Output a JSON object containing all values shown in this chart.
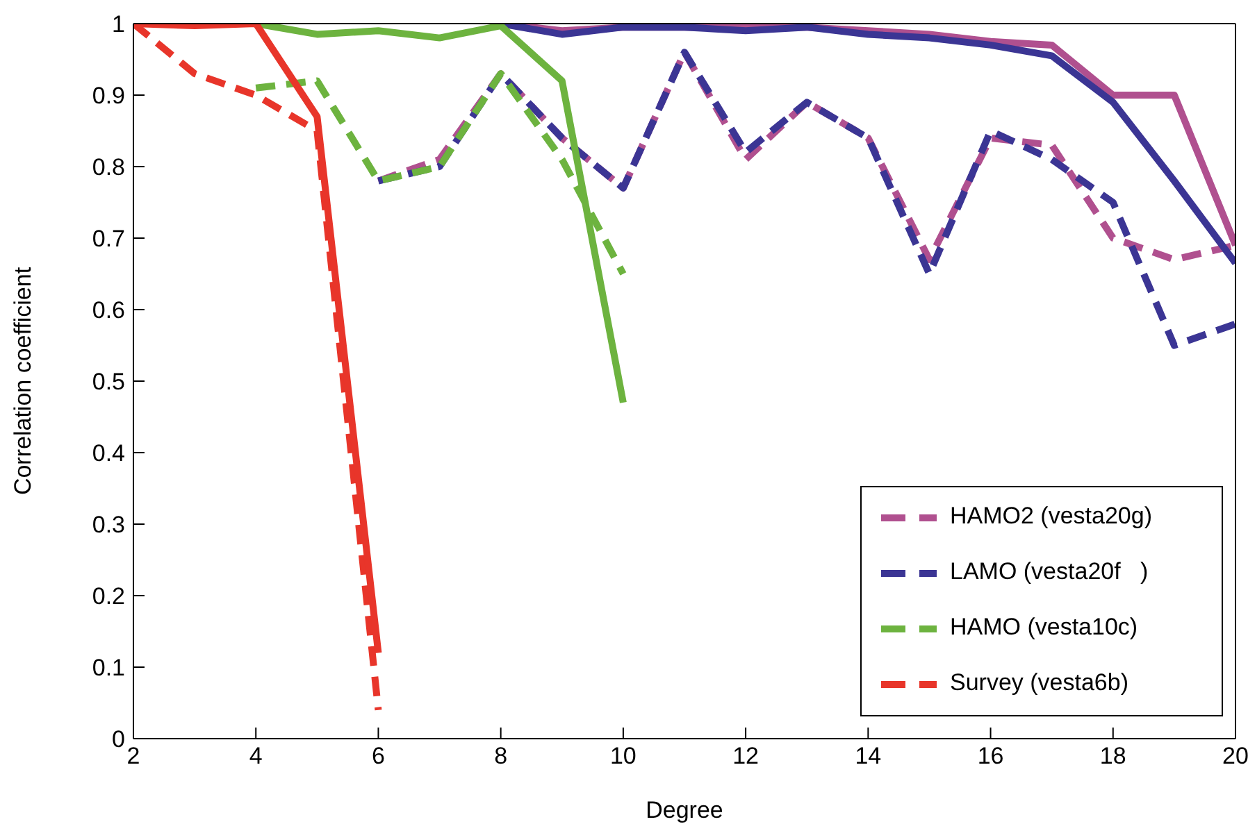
{
  "chart_data": {
    "type": "line",
    "xlabel": "Degree",
    "ylabel": "Correlation coefficient",
    "xlim": [
      2,
      20
    ],
    "xticks": [
      2,
      4,
      6,
      8,
      10,
      12,
      14,
      16,
      18,
      20
    ],
    "ylim": [
      0,
      1
    ],
    "yticks": [
      0,
      0.1,
      0.2,
      0.3,
      0.4,
      0.5,
      0.6,
      0.7,
      0.8,
      0.9,
      1
    ],
    "grid": false,
    "legend": "bottom right",
    "marker": "none",
    "series": [
      {
        "name": "HAMO2 (vesta20g)",
        "color": "#b0508f",
        "line_style": "dashed",
        "x": [
          6,
          7,
          8,
          9,
          10,
          11,
          12,
          13,
          14,
          15,
          16,
          17,
          18,
          19,
          20
        ],
        "values": [
          0.78,
          0.81,
          0.93,
          0.84,
          0.77,
          0.96,
          0.81,
          0.89,
          0.84,
          0.67,
          0.84,
          0.83,
          0.7,
          0.67,
          0.69
        ]
      },
      {
        "name": "LAMO (vesta20f   )",
        "color": "#3b3594",
        "line_style": "dashed",
        "x": [
          6,
          7,
          8,
          9,
          10,
          11,
          12,
          13,
          14,
          15,
          16,
          17,
          18,
          19,
          20
        ],
        "values": [
          0.78,
          0.8,
          0.93,
          0.84,
          0.77,
          0.96,
          0.82,
          0.89,
          0.84,
          0.65,
          0.85,
          0.81,
          0.75,
          0.55,
          0.58
        ]
      },
      {
        "name": "HAMO (vesta10c)",
        "color": "#6db33f",
        "line_style": "dashed",
        "x": [
          4,
          5,
          6,
          7,
          8,
          9,
          10
        ],
        "values": [
          0.91,
          0.92,
          0.78,
          0.8,
          0.93,
          0.81,
          0.65
        ]
      },
      {
        "name": "Survey (vesta6b)",
        "color": "#e8352a",
        "line_style": "dashed",
        "x": [
          2,
          3,
          4,
          5,
          6
        ],
        "values": [
          1,
          0.93,
          0.9,
          0.85,
          0.04
        ]
      },
      {
        "color": "#b0508f",
        "line_style": "solid",
        "x": [
          8,
          9,
          10,
          11,
          12,
          13,
          14,
          15,
          16,
          17,
          18,
          19,
          20
        ],
        "values": [
          1,
          0.99,
          0.995,
          0.995,
          0.995,
          0.995,
          0.99,
          0.985,
          0.975,
          0.97,
          0.9,
          0.9,
          0.69
        ]
      },
      {
        "color": "#3b3594",
        "line_style": "solid",
        "x": [
          8,
          9,
          10,
          11,
          12,
          13,
          14,
          15,
          16,
          17,
          18,
          19,
          20
        ],
        "values": [
          1,
          0.985,
          0.995,
          0.995,
          0.99,
          0.995,
          0.985,
          0.98,
          0.97,
          0.955,
          0.89,
          0.78,
          0.665
        ]
      },
      {
        "color": "#6db33f",
        "line_style": "solid",
        "x": [
          4,
          5,
          6,
          7,
          8,
          9,
          10
        ],
        "values": [
          1,
          0.985,
          0.99,
          0.98,
          0.997,
          0.92,
          0.47
        ]
      },
      {
        "color": "#e8352a",
        "line_style": "solid",
        "x": [
          2,
          3,
          4,
          5,
          6
        ],
        "values": [
          1,
          0.997,
          1,
          0.87,
          0.12
        ]
      }
    ]
  }
}
